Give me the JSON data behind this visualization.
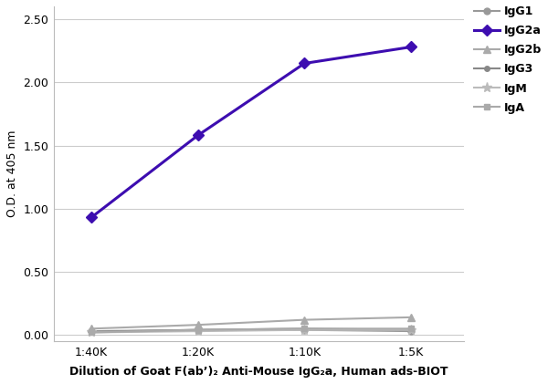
{
  "x_labels": [
    "1:40K",
    "1:20K",
    "1:10K",
    "1:5K"
  ],
  "x_values": [
    1,
    2,
    3,
    4
  ],
  "series_order": [
    "IgG1",
    "IgG2a",
    "IgG2b",
    "IgG3",
    "IgM",
    "IgA"
  ],
  "series": {
    "IgG1": {
      "values": [
        0.03,
        0.04,
        0.04,
        0.03
      ],
      "color": "#999999",
      "marker": "o",
      "linewidth": 1.5,
      "markersize": 5,
      "zorder": 2
    },
    "IgG2a": {
      "values": [
        0.93,
        1.58,
        2.15,
        2.28
      ],
      "color": "#3d0db0",
      "marker": "D",
      "linewidth": 2.2,
      "markersize": 6,
      "zorder": 5
    },
    "IgG2b": {
      "values": [
        0.05,
        0.08,
        0.12,
        0.14
      ],
      "color": "#aaaaaa",
      "marker": "^",
      "linewidth": 1.5,
      "markersize": 6,
      "zorder": 3
    },
    "IgG3": {
      "values": [
        0.025,
        0.04,
        0.05,
        0.04
      ],
      "color": "#888888",
      "marker": "o",
      "linewidth": 1.5,
      "markersize": 4,
      "zorder": 2
    },
    "IgM": {
      "values": [
        0.02,
        0.03,
        0.04,
        0.04
      ],
      "color": "#bbbbbb",
      "marker": "*",
      "linewidth": 1.5,
      "markersize": 8,
      "zorder": 2
    },
    "IgA": {
      "values": [
        0.02,
        0.04,
        0.05,
        0.05
      ],
      "color": "#aaaaaa",
      "marker": "s",
      "linewidth": 1.5,
      "markersize": 5,
      "zorder": 2
    }
  },
  "ylabel": "O.D. at 405 nm",
  "xlabel": "Dilution of Goat F(ab’)₂ Anti-Mouse IgG₂a, Human ads-BIOT",
  "ylim": [
    -0.05,
    2.6
  ],
  "yticks": [
    0.0,
    0.5,
    1.0,
    1.5,
    2.0,
    2.5
  ],
  "axis_label_fontsize": 9,
  "tick_fontsize": 9,
  "legend_fontsize": 9,
  "background_color": "#ffffff",
  "grid_color": "#cccccc"
}
